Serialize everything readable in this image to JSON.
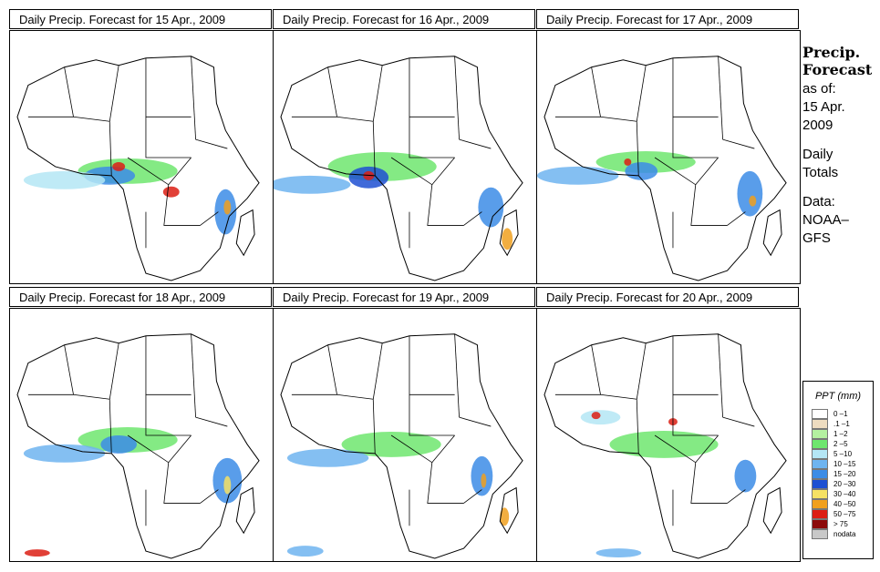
{
  "panels": [
    {
      "title": "Daily Precip. Forecast for  15 Apr., 2009"
    },
    {
      "title": "Daily Precip. Forecast for  16 Apr., 2009"
    },
    {
      "title": "Daily Precip. Forecast for  17 Apr., 2009"
    },
    {
      "title": "Daily Precip. Forecast for  18 Apr., 2009"
    },
    {
      "title": "Daily Precip. Forecast for  19 Apr., 2009"
    },
    {
      "title": "Daily Precip. Forecast for  20 Apr., 2009"
    }
  ],
  "sidebar": {
    "heading1": "Precip.",
    "heading2": "Forecast",
    "asof_label": "as of:",
    "asof_date1": "15 Apr.",
    "asof_date2": "2009",
    "totals1": "Daily",
    "totals2": "Totals",
    "data_label": "Data:",
    "data_source1": "NOAA–",
    "data_source2": "GFS"
  },
  "legend": {
    "title": "PPT (mm)",
    "items": [
      {
        "label": "0 –1",
        "color": "#ffffff"
      },
      {
        "label": ".1 –1",
        "color": "#eedcc0"
      },
      {
        "label": "1 –2",
        "color": "#b4f0a0"
      },
      {
        "label": "2 –5",
        "color": "#6ee66e"
      },
      {
        "label": "5 –10",
        "color": "#b4e6f5"
      },
      {
        "label": "10 –15",
        "color": "#6eb4f0"
      },
      {
        "label": "15 –20",
        "color": "#3c8ce6"
      },
      {
        "label": "20 –30",
        "color": "#1e50d2"
      },
      {
        "label": "30 –40",
        "color": "#f5e164"
      },
      {
        "label": "40 –50",
        "color": "#f0a01e"
      },
      {
        "label": "50 –75",
        "color": "#dc1e14"
      },
      {
        "label": "> 75",
        "color": "#8c0a0a"
      },
      {
        "label": "nodata",
        "color": "#c8c8c8"
      }
    ]
  }
}
